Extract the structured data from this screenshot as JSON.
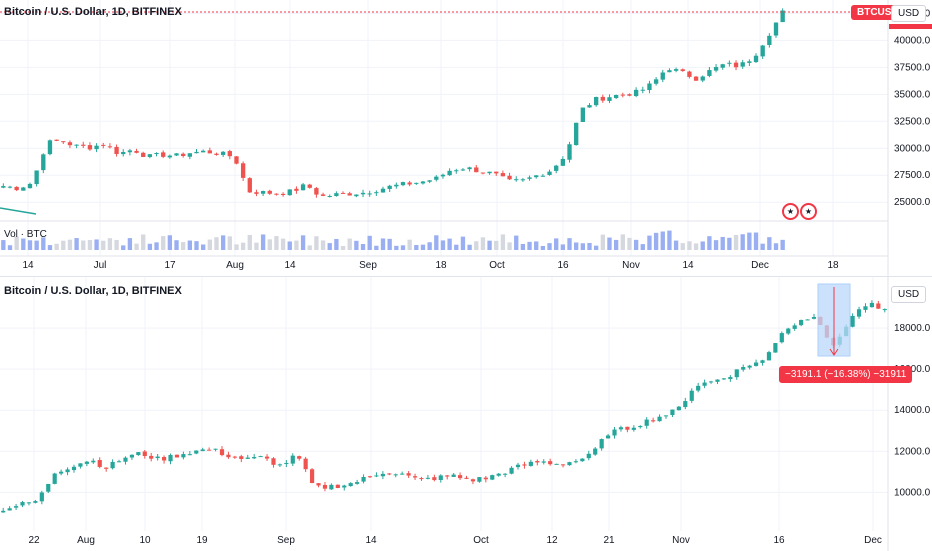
{
  "top": {
    "title": "Bitcoin / U.S. Dollar, 1D, BITFINEX",
    "symbol_button": "BTCUSD",
    "currency_button": "USD",
    "volume_label": "Vol · BTC",
    "price_ticks": [
      "42500.0",
      "40000.0",
      "37500.0",
      "35000.0",
      "32500.0",
      "30000.0",
      "27500.0",
      "25000.0"
    ],
    "date_ticks": [
      "14",
      "Jul",
      "17",
      "Aug",
      "14",
      "Sep",
      "18",
      "Oct",
      "16",
      "Nov",
      "14",
      "Dec",
      "18"
    ],
    "flag_icons": [
      "us-flag-icon",
      "us-flag-icon"
    ]
  },
  "bottom": {
    "title": "Bitcoin / U.S. Dollar, 1D, BITFINEX",
    "currency_button": "USD",
    "price_ticks": [
      "18000.0",
      "16000.0",
      "14000.0",
      "12000.0",
      "10000.0"
    ],
    "date_ticks": [
      "22",
      "Aug",
      "10",
      "19",
      "Sep",
      "14",
      "Oct",
      "12",
      "21",
      "Nov",
      "16",
      "Dec"
    ],
    "measure_label": "−3191.1 (−16.38%) −31911"
  },
  "colors": {
    "up": "#26a69a",
    "down": "#ef5350",
    "accent": "#f23645",
    "measure_fill": "#bbd9fb"
  },
  "chart_data": [
    {
      "type": "candlestick",
      "title": "Bitcoin / U.S. Dollar, 1D, BITFINEX",
      "ylim": [
        24000,
        43000
      ],
      "x_ticks": [
        "14",
        "Jul",
        "17",
        "Aug",
        "14",
        "Sep",
        "18",
        "Oct",
        "16",
        "Nov",
        "14",
        "Dec",
        "18"
      ],
      "close_path": [
        26500,
        26300,
        26800,
        30500,
        30700,
        30200,
        30100,
        30400,
        29500,
        29900,
        29200,
        29400,
        29300,
        29600,
        29700,
        29500,
        29200,
        26000,
        25900,
        25800,
        26000,
        26600,
        25500,
        25700,
        25800,
        25900,
        26200,
        26500,
        26700,
        26900,
        27200,
        28000,
        28200,
        27900,
        27600,
        26900,
        27000,
        27500,
        28000,
        29500,
        33500,
        34500,
        34800,
        35000,
        35200,
        36000,
        37500,
        37000,
        36500,
        37200,
        37800,
        37600,
        38500,
        40500,
        42600
      ],
      "volume_series": "Vol · BTC"
    },
    {
      "type": "candlestick",
      "title": "Bitcoin / U.S. Dollar, 1D, BITFINEX",
      "ylim": [
        8800,
        20000
      ],
      "x_ticks": [
        "22",
        "Aug",
        "10",
        "19",
        "Sep",
        "14",
        "Oct",
        "12",
        "21",
        "Nov",
        "16",
        "Dec"
      ],
      "close_path": [
        9200,
        9400,
        9600,
        11000,
        11300,
        11600,
        11200,
        11700,
        11900,
        11600,
        11800,
        12000,
        12100,
        11800,
        11600,
        11700,
        11300,
        11800,
        10200,
        10300,
        10400,
        10700,
        11000,
        10900,
        10600,
        10700,
        10800,
        10600,
        10700,
        11000,
        11300,
        11500,
        11400,
        11500,
        11800,
        12900,
        13100,
        13400,
        13700,
        14000,
        15200,
        15400,
        15700,
        16200,
        16400,
        17800,
        18300,
        18700,
        17000,
        18500,
        19200,
        18800
      ],
      "measure": "−3191.1 (−16.38%) −31911"
    }
  ]
}
